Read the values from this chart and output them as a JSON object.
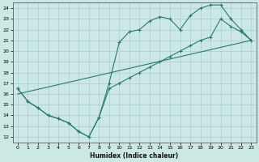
{
  "xlabel": "Humidex (Indice chaleur)",
  "bg_color": "#cce8e4",
  "line_color": "#2a7a6a",
  "grid_color": "#aaceca",
  "xlim": [
    -0.5,
    23.5
  ],
  "ylim": [
    11.5,
    24.5
  ],
  "xticks": [
    0,
    1,
    2,
    3,
    4,
    5,
    6,
    7,
    8,
    9,
    10,
    11,
    12,
    13,
    14,
    15,
    16,
    17,
    18,
    19,
    20,
    21,
    22,
    23
  ],
  "yticks": [
    12,
    13,
    14,
    15,
    16,
    17,
    18,
    19,
    20,
    21,
    22,
    23,
    24
  ],
  "line1_x": [
    0,
    1,
    2,
    3,
    4,
    5,
    6,
    7,
    8,
    9,
    10,
    11,
    12,
    13,
    14,
    15,
    16,
    17,
    18,
    19,
    20,
    21,
    22,
    23
  ],
  "line1_y": [
    16.5,
    15.3,
    14.7,
    14.0,
    13.7,
    13.3,
    12.5,
    12.0,
    13.8,
    17.0,
    20.8,
    21.8,
    22.0,
    22.8,
    23.2,
    23.0,
    22.0,
    23.3,
    24.0,
    24.3,
    24.3,
    23.0,
    22.0,
    21.0
  ],
  "line2_x": [
    0,
    23
  ],
  "line2_y": [
    16.0,
    21.0
  ],
  "line3_x": [
    0,
    1,
    2,
    3,
    4,
    5,
    6,
    7,
    8,
    9,
    10,
    11,
    12,
    13,
    14,
    15,
    16,
    17,
    18,
    19,
    20,
    21,
    22,
    23
  ],
  "line3_y": [
    16.5,
    15.3,
    14.7,
    14.0,
    13.7,
    13.3,
    12.5,
    12.0,
    13.8,
    16.5,
    17.0,
    17.5,
    18.0,
    18.5,
    19.0,
    19.5,
    20.0,
    20.5,
    21.0,
    21.3,
    23.0,
    22.3,
    21.8,
    21.0
  ]
}
